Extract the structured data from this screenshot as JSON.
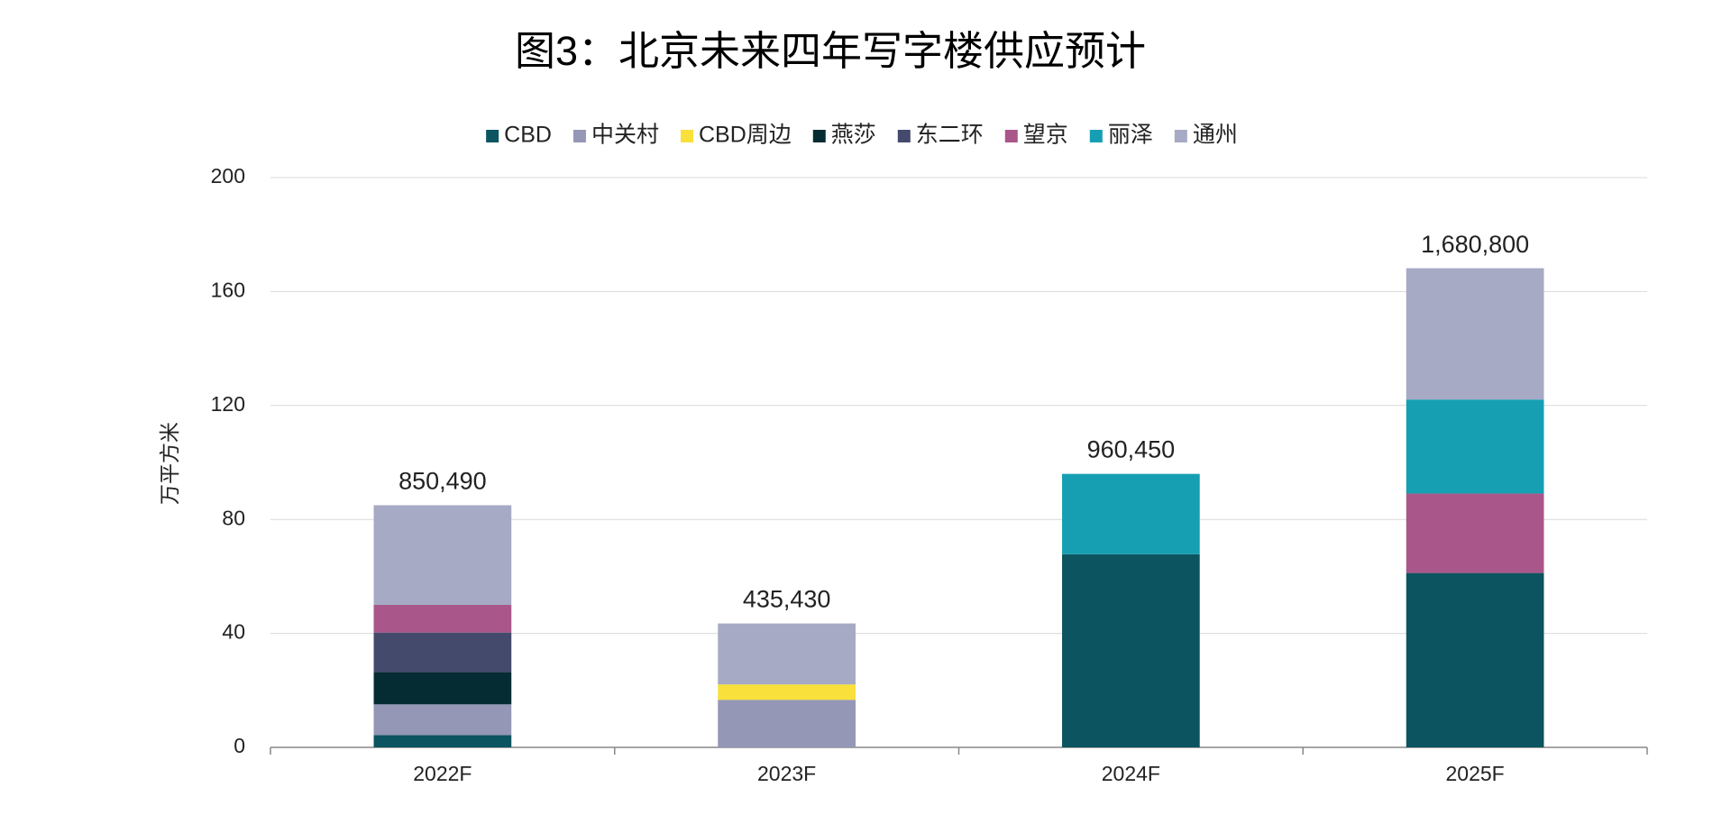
{
  "chart_data": {
    "type": "stacked_bar",
    "title": "图3：北京未来四年写字楼供应预计",
    "y_label": "万平方米",
    "categories": [
      "2022F",
      "2023F",
      "2024F",
      "2025F"
    ],
    "series": [
      {
        "name": "CBD",
        "color": "#0b5460",
        "values": [
          4.3,
          null,
          67.8,
          61.2
        ]
      },
      {
        "name": "中关村",
        "color": "#9497b5",
        "values": [
          10.8,
          16.7,
          null,
          null
        ]
      },
      {
        "name": "CBD周边",
        "color": "#f9e03a",
        "values": [
          null,
          5.4,
          null,
          null
        ]
      },
      {
        "name": "燕莎",
        "color": "#062c33",
        "values": [
          11.3,
          null,
          null,
          null
        ]
      },
      {
        "name": "东二环",
        "color": "#434a6c",
        "values": [
          13.9,
          null,
          null,
          null
        ]
      },
      {
        "name": "望京",
        "color": "#a9568a",
        "values": [
          9.7,
          null,
          null,
          27.9
        ]
      },
      {
        "name": "丽泽",
        "color": "#169fb3",
        "values": [
          null,
          null,
          28.2,
          33.0
        ]
      },
      {
        "name": "通州",
        "color": "#a6aac4",
        "values": [
          35.0,
          21.4,
          null,
          46.1
        ]
      }
    ],
    "totals": {
      "values": [
        85.049,
        43.543,
        96.045,
        168.08
      ],
      "value_labels": [
        "850,490",
        "435,430",
        "960,450",
        "1,680,800"
      ]
    },
    "ylim": [
      0,
      200
    ],
    "yticks": [
      0,
      40,
      80,
      120,
      160,
      200
    ],
    "grid": true,
    "legend": "top"
  }
}
